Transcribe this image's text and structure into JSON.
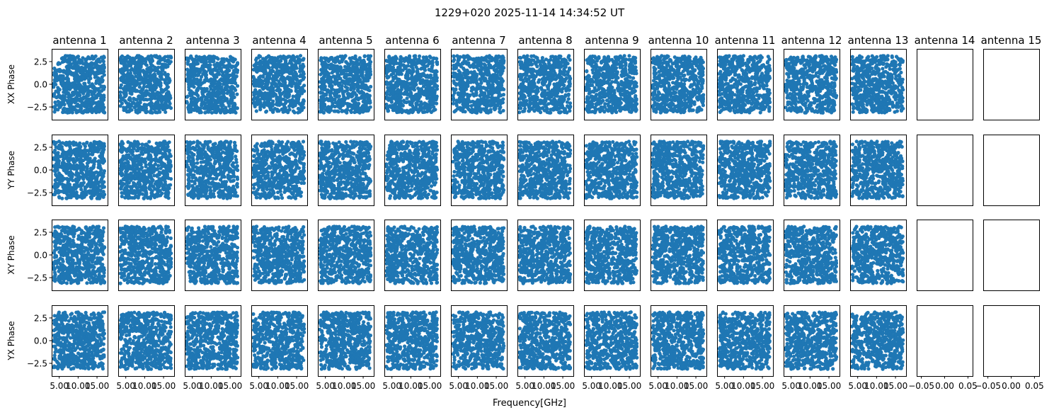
{
  "figure": {
    "title": "1229+020 2025-11-14 14:34:52 UT",
    "xlabel": "Frequency[GHz]"
  },
  "chart_data": {
    "type": "scatter",
    "title": "1229+020 2025-11-14 14:34:52 UT",
    "xlabel": "Frequency[GHz]",
    "marker_color": "#1f77b4",
    "grid": false,
    "columns": [
      "antenna 1",
      "antenna 2",
      "antenna 3",
      "antenna 4",
      "antenna 5",
      "antenna 6",
      "antenna 7",
      "antenna 8",
      "antenna 9",
      "antenna 10",
      "antenna 11",
      "antenna 12",
      "antenna 13",
      "antenna 14",
      "antenna 15"
    ],
    "rows": [
      "XX Phase",
      "YY Phase",
      "XY Phase",
      "YX Phase"
    ],
    "antennas_with_data": 13,
    "empty_antennas": [
      "antenna 14",
      "antenna 15"
    ],
    "xlim": [
      3.0,
      17.8
    ],
    "ylim": [
      -3.9,
      3.9
    ],
    "xticks": [
      5.0,
      10.0,
      15.0
    ],
    "xtick_labels": [
      "5.00",
      "10.00",
      "15.00"
    ],
    "yticks": [
      -2.5,
      0.0,
      2.5
    ],
    "ytick_labels": [
      "−2.5",
      "0.0",
      "2.5"
    ],
    "empty_xlim": [
      -0.06,
      0.06
    ],
    "empty_xticks": [
      -0.05,
      0.0,
      0.05
    ],
    "empty_xtick_labels": [
      "−0.05",
      "0.00",
      "0.05"
    ],
    "points_per_panel": 600,
    "phase_range": [
      -3.1416,
      3.1416
    ],
    "freq_range": [
      3.5,
      17.0
    ]
  }
}
